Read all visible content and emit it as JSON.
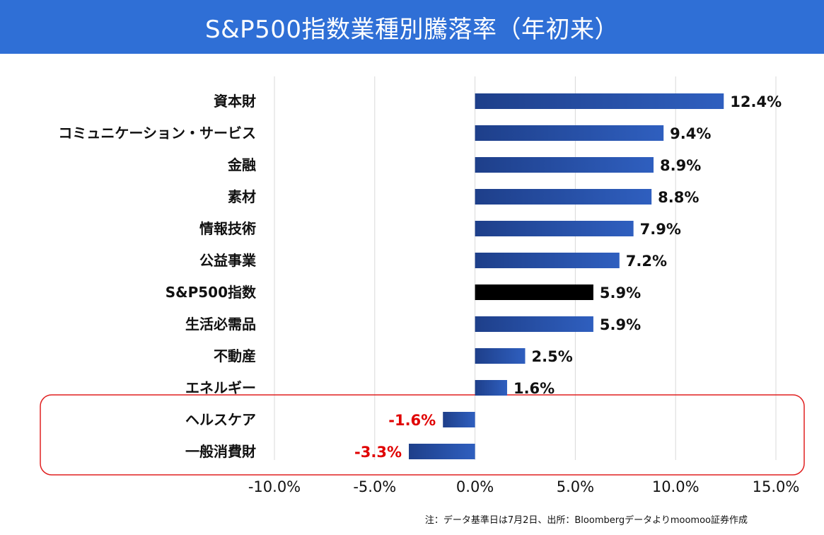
{
  "chart_data": {
    "type": "bar",
    "orientation": "horizontal",
    "title": "S&P500指数業種別騰落率（年初来）",
    "categories": [
      "資本財",
      "コミュニケーション・サービス",
      "金融",
      "素材",
      "情報技術",
      "公益事業",
      "S&P500指数",
      "生活必需品",
      "不動産",
      "エネルギー",
      "ヘルスケア",
      "一般消費財"
    ],
    "values": [
      12.4,
      9.4,
      8.9,
      8.8,
      7.9,
      7.2,
      5.9,
      5.9,
      2.5,
      1.6,
      -1.6,
      -3.3
    ],
    "value_labels": [
      "12.4%",
      "9.4%",
      "8.9%",
      "8.8%",
      "7.9%",
      "7.2%",
      "5.9%",
      "5.9%",
      "2.5%",
      "1.6%",
      "-1.6%",
      "-3.3%"
    ],
    "xlim": [
      -10,
      15
    ],
    "xticks": [
      -10,
      -5,
      0,
      5,
      10,
      15
    ],
    "xtick_labels": [
      "-10.0%",
      "-5.0%",
      "0.0%",
      "5.0%",
      "10.0%",
      "15.0%"
    ],
    "grid": true,
    "colors": {
      "bar": "#2f5fbf",
      "highlight_bar": "#000000",
      "negative_label": "#e00000",
      "highlight_box": "#e02020",
      "grid": "#d9d9d9"
    },
    "highlight_category": "S&P500指数",
    "boxed_categories": [
      "ヘルスケア",
      "一般消費財"
    ]
  },
  "footnote": "注：データ基準日は7月2日、出所：Bloombergデータよりmoomoo証券作成"
}
